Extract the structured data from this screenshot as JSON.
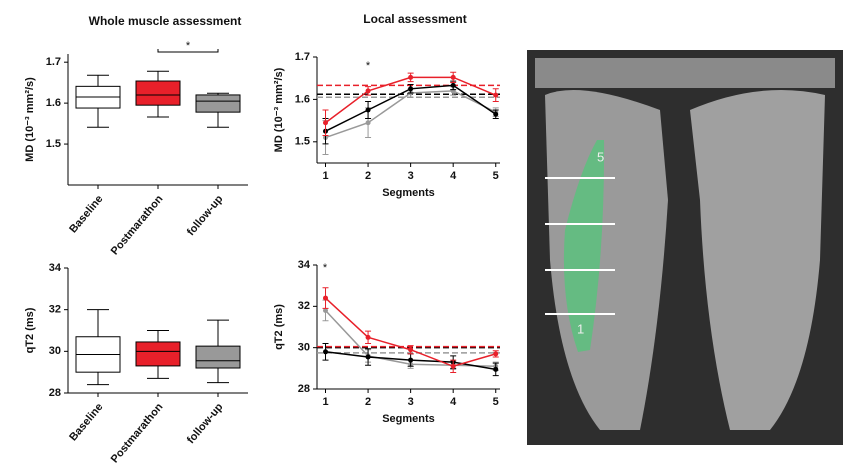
{
  "headings": {
    "whole": "Whole muscle assessment",
    "local": "Local assessment"
  },
  "chart_data": [
    {
      "type": "box",
      "ylabel": "MD (10⁻³ mm²/s)",
      "categories": [
        "Baseline",
        "Postmarathon",
        "follow-up"
      ],
      "colors": [
        "#ffffff",
        "#e8202a",
        "#999999"
      ],
      "boxes": [
        {
          "min": 1.541,
          "q1": 1.588,
          "median": 1.615,
          "q3": 1.641,
          "max": 1.668
        },
        {
          "min": 1.566,
          "q1": 1.595,
          "median": 1.62,
          "q3": 1.654,
          "max": 1.678
        },
        {
          "min": 1.541,
          "q1": 1.578,
          "median": 1.605,
          "q3": 1.62,
          "max": 1.624
        }
      ],
      "ylim": [
        1.4,
        1.72
      ],
      "yticks": [
        1.5,
        1.6,
        1.7
      ],
      "annotations": [
        "*"
      ]
    },
    {
      "type": "box",
      "ylabel": "qT2 (ms)",
      "categories": [
        "Baseline",
        "Postmarathon",
        "follow-up"
      ],
      "colors": [
        "#ffffff",
        "#e8202a",
        "#999999"
      ],
      "boxes": [
        {
          "min": 28.4,
          "q1": 29.0,
          "median": 29.85,
          "q3": 30.7,
          "max": 32.0
        },
        {
          "min": 28.7,
          "q1": 29.3,
          "median": 30.0,
          "q3": 30.45,
          "max": 31.0
        },
        {
          "min": 28.5,
          "q1": 29.2,
          "median": 29.55,
          "q3": 30.25,
          "max": 31.5
        }
      ],
      "ylim": [
        28,
        34
      ],
      "yticks": [
        28,
        30,
        32,
        34
      ],
      "annotations": []
    },
    {
      "type": "line",
      "ylabel": "MD (10⁻³ mm²/s)",
      "xlabel": "Segments",
      "x": [
        1,
        2,
        3,
        4,
        5
      ],
      "xlim": [
        0.8,
        5.1
      ],
      "xticks": [
        1,
        2,
        3,
        4,
        5
      ],
      "ylim": [
        1.45,
        1.7
      ],
      "yticks": [
        1.5,
        1.6,
        1.7
      ],
      "series": [
        {
          "color": "#999999",
          "values": [
            1.51,
            1.545,
            1.615,
            1.62,
            1.57
          ],
          "errors": [
            0.04,
            0.035,
            0.01,
            0.01,
            0.01
          ],
          "reference": 1.605
        },
        {
          "color": "#000000",
          "values": [
            1.525,
            1.575,
            1.625,
            1.633,
            1.565
          ],
          "errors": [
            0.03,
            0.02,
            0.01,
            0.01,
            0.01
          ],
          "reference": 1.612
        },
        {
          "color": "#e8202a",
          "values": [
            1.545,
            1.62,
            1.652,
            1.652,
            1.61
          ],
          "errors": [
            0.03,
            0.01,
            0.01,
            0.012,
            0.015
          ],
          "reference": 1.633
        }
      ],
      "annotations": [
        "*"
      ]
    },
    {
      "type": "line",
      "ylabel": "qT2 (ms)",
      "xlabel": "Segments",
      "x": [
        1,
        2,
        3,
        4,
        5
      ],
      "xlim": [
        0.8,
        5.1
      ],
      "xticks": [
        1,
        2,
        3,
        4,
        5
      ],
      "ylim": [
        28,
        34
      ],
      "yticks": [
        28,
        30,
        32,
        34
      ],
      "series": [
        {
          "color": "#999999",
          "values": [
            31.8,
            29.6,
            29.2,
            29.15,
            29.1
          ],
          "errors": [
            0.5,
            0.3,
            0.2,
            0.2,
            0.2
          ],
          "reference": 29.75
        },
        {
          "color": "#000000",
          "values": [
            29.8,
            29.55,
            29.4,
            29.3,
            28.95
          ],
          "errors": [
            0.4,
            0.4,
            0.3,
            0.3,
            0.3
          ],
          "reference": 30.0
        },
        {
          "color": "#e8202a",
          "values": [
            32.4,
            30.5,
            29.9,
            29.1,
            29.7
          ],
          "errors": [
            0.5,
            0.3,
            0.2,
            0.3,
            0.15
          ],
          "reference": 30.05
        }
      ],
      "annotations": [
        "*"
      ]
    }
  ],
  "image": {
    "labels": [
      "5",
      "1"
    ]
  }
}
